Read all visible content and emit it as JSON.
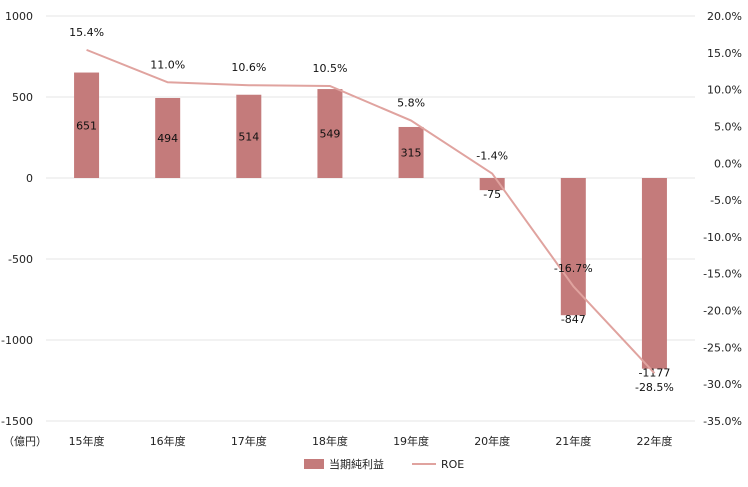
{
  "chart_data": {
    "type": "bar",
    "categories": [
      "15年度",
      "16年度",
      "17年度",
      "18年度",
      "19年度",
      "20年度",
      "21年度",
      "22年度"
    ],
    "series": [
      {
        "name": "当期純利益",
        "type": "bar",
        "axis": "left",
        "values": [
          651,
          494,
          514,
          549,
          315,
          -75,
          -847,
          -1177
        ]
      },
      {
        "name": "ROE",
        "type": "line",
        "axis": "right",
        "values": [
          15.4,
          11.0,
          10.6,
          10.5,
          5.8,
          -1.4,
          -16.7,
          -28.5
        ]
      }
    ],
    "line_labels": [
      "15.4%",
      "11.0%",
      "10.6%",
      "10.5%",
      "5.8%",
      "-1.4%",
      "-16.7%",
      "-28.5%"
    ],
    "y_left": {
      "ylim": [
        -1500,
        1000
      ],
      "ticks": [
        1000,
        500,
        0,
        -500,
        -1000,
        -1500
      ],
      "unit_label": "（億円）"
    },
    "y_right": {
      "ylim": [
        -35,
        20
      ],
      "ticks": [
        "20.0%",
        "15.0%",
        "10.0%",
        "5.0%",
        "0.0%",
        "-5.0%",
        "-10.0%",
        "-15.0%",
        "-20.0%",
        "-25.0%",
        "-30.0%",
        "-35.0%"
      ]
    },
    "legend": {
      "position": "bottom"
    },
    "colors": {
      "bar": "#c47b7b",
      "line": "#e0a39f",
      "grid": "#e6e6e6"
    }
  }
}
